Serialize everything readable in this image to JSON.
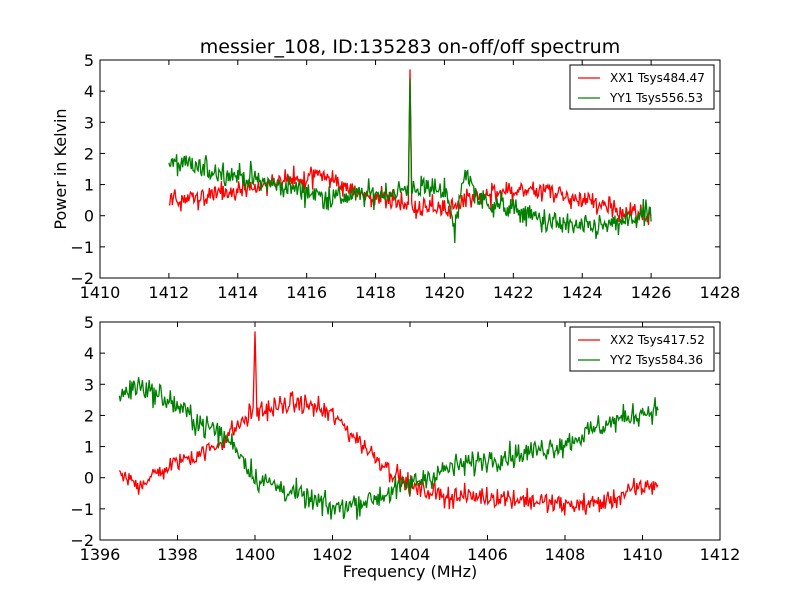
{
  "chart_data": [
    {
      "type": "line",
      "title": "messier_108, ID:135283 on-off/off spectrum",
      "xlabel": "",
      "ylabel": "Power in Kelvin",
      "xlim": [
        1410,
        1428
      ],
      "ylim": [
        -2,
        5
      ],
      "xticks": [
        1410,
        1412,
        1414,
        1416,
        1418,
        1420,
        1422,
        1424,
        1426,
        1428
      ],
      "yticks": [
        -2,
        -1,
        0,
        1,
        2,
        3,
        4,
        5
      ],
      "legend_position": "top-right",
      "series": [
        {
          "name": "XX1 Tsys484.47",
          "color": "#ff0000",
          "x": [
            1412,
            1413,
            1414,
            1415,
            1416,
            1416.5,
            1417,
            1418,
            1418.95,
            1419,
            1419.05,
            1420,
            1421,
            1422,
            1423,
            1424,
            1425,
            1426
          ],
          "values": [
            0.5,
            0.6,
            0.8,
            1.0,
            1.2,
            1.3,
            1.0,
            0.5,
            0.3,
            4.7,
            0.3,
            0.2,
            0.6,
            0.8,
            0.8,
            0.5,
            0.2,
            0.0
          ]
        },
        {
          "name": "YY1 Tsys556.53",
          "color": "#008000",
          "x": [
            1412,
            1413,
            1414,
            1415,
            1416,
            1416.5,
            1417,
            1418,
            1418.95,
            1419,
            1419.05,
            1420,
            1420.3,
            1420.6,
            1421,
            1422,
            1423,
            1424,
            1425,
            1426
          ],
          "values": [
            1.7,
            1.5,
            1.3,
            1.0,
            0.8,
            0.6,
            0.6,
            0.7,
            0.8,
            4.4,
            0.9,
            0.9,
            -0.5,
            1.5,
            0.5,
            0.2,
            -0.2,
            -0.4,
            -0.3,
            0.1
          ]
        }
      ]
    },
    {
      "type": "line",
      "title": "",
      "xlabel": "Frequency (MHz)",
      "ylabel": "",
      "xlim": [
        1396,
        1412
      ],
      "ylim": [
        -2,
        5
      ],
      "xticks": [
        1396,
        1398,
        1400,
        1402,
        1404,
        1406,
        1408,
        1410,
        1412
      ],
      "yticks": [
        -2,
        -1,
        0,
        1,
        2,
        3,
        4,
        5
      ],
      "legend_position": "top-right",
      "series": [
        {
          "name": "XX2 Tsys417.52",
          "color": "#ff0000",
          "x": [
            1396.5,
            1397,
            1398,
            1399,
            1399.5,
            1399.95,
            1400,
            1400.05,
            1401,
            1401.5,
            1402,
            1403,
            1404,
            1405,
            1406,
            1407,
            1408,
            1409,
            1410,
            1410.4
          ],
          "values": [
            0.0,
            -0.2,
            0.5,
            1.0,
            1.6,
            2.1,
            4.7,
            2.1,
            2.4,
            2.3,
            2.0,
            0.8,
            -0.3,
            -0.6,
            -0.6,
            -0.7,
            -0.9,
            -0.8,
            -0.3,
            -0.2
          ]
        },
        {
          "name": "YY2 Tsys584.36",
          "color": "#008000",
          "x": [
            1396.5,
            1397,
            1398,
            1398.5,
            1399,
            1399.5,
            1400,
            1401,
            1402,
            1403,
            1404,
            1405,
            1406,
            1407,
            1408,
            1409,
            1410,
            1410.4
          ],
          "values": [
            2.6,
            3.0,
            2.3,
            1.8,
            1.5,
            1.0,
            0.0,
            -0.5,
            -1.0,
            -0.7,
            -0.2,
            0.3,
            0.6,
            0.8,
            1.1,
            1.7,
            2.1,
            2.2
          ]
        }
      ]
    }
  ]
}
